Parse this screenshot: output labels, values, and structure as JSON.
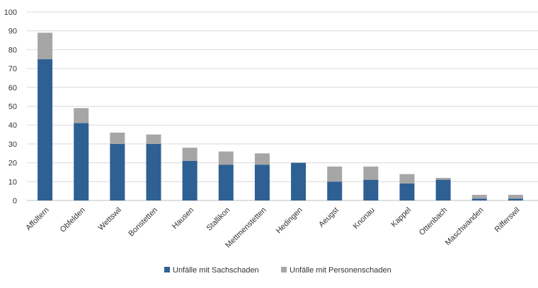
{
  "chart_data": {
    "type": "bar",
    "stacked": true,
    "categories": [
      "Affoltern",
      "Obfelden",
      "Wettswil",
      "Bonstetten",
      "Hausen",
      "Stallikon",
      "Mettmenstetten",
      "Hedingen",
      "Aeugst",
      "Knonau",
      "Kappel",
      "Ottenbach",
      "Maschwanden",
      "Rifferswil"
    ],
    "series": [
      {
        "name": "Unfälle mit Sachschaden",
        "color": "#2e6094",
        "values": [
          75,
          41,
          30,
          30,
          21,
          19,
          19,
          20,
          10,
          11,
          9,
          11,
          1,
          1
        ]
      },
      {
        "name": "Unfälle mit Personenschaden",
        "color": "#a6a6a6",
        "values": [
          14,
          8,
          6,
          5,
          7,
          7,
          6,
          0,
          8,
          7,
          5,
          1,
          2,
          2
        ]
      }
    ],
    "ylim": [
      0,
      100
    ],
    "yticks": [
      0,
      10,
      20,
      30,
      40,
      50,
      60,
      70,
      80,
      90,
      100
    ],
    "grid": true,
    "legend": "bottom"
  }
}
